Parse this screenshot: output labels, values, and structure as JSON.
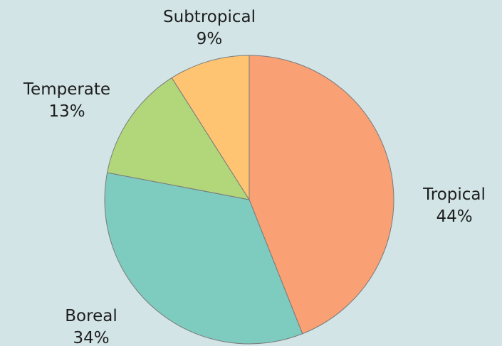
{
  "chart_data": {
    "type": "pie",
    "title": "",
    "start_angle_deg": 0,
    "direction": "clockwise",
    "legend": "none",
    "slices": [
      {
        "label": "Tropical",
        "value": 44,
        "value_label": "44%",
        "color": "#f9a074"
      },
      {
        "label": "Boreal",
        "value": 34,
        "value_label": "34%",
        "color": "#7ecbbf"
      },
      {
        "label": "Temperate",
        "value": 13,
        "value_label": "13%",
        "color": "#b2d77b"
      },
      {
        "label": "Subtropical",
        "value": 9,
        "value_label": "9%",
        "color": "#fec472"
      }
    ]
  },
  "colors": {
    "background": "#d2e4e6",
    "slice_border": "#7a7a7a",
    "text": "#1d1d1d"
  }
}
